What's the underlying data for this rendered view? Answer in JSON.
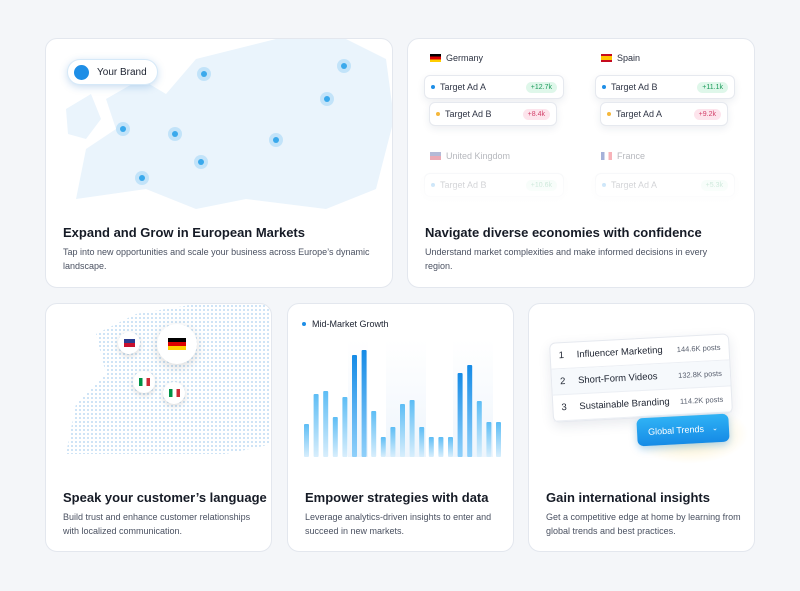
{
  "cards": [
    {
      "title": "Expand and Grow in European Markets",
      "description": "Tap into new opportunities and scale your business across Europe’s dynamic landscape.",
      "brand": "Your Brand"
    },
    {
      "title": "Navigate diverse economies with confidence",
      "description": "Understand market complexities and make informed decisions in every region.",
      "markets": [
        {
          "country": "Germany",
          "ads": [
            {
              "name": "Target Ad A",
              "change": "+12.7k"
            },
            {
              "name": "Target Ad B",
              "change": "+8.4k"
            }
          ]
        },
        {
          "country": "Spain",
          "ads": [
            {
              "name": "Target Ad B",
              "change": "+11.1k"
            },
            {
              "name": "Target Ad A",
              "change": "+9.2k"
            }
          ]
        },
        {
          "country": "United Kingdom",
          "ads": [
            {
              "name": "Target Ad B",
              "change": "+10.6k"
            }
          ]
        },
        {
          "country": "France",
          "ads": [
            {
              "name": "Target Ad A",
              "change": "+5.3k"
            }
          ]
        }
      ]
    },
    {
      "title": "Speak your customer’s language",
      "description": "Build trust and enhance customer relationships with localized communication."
    },
    {
      "title": "Empower strategies with data",
      "description": "Leverage analytics-driven insights to enter and succeed in new markets.",
      "chart_label": "Mid-Market Growth",
      "bars": [
        33,
        63,
        66,
        40,
        60,
        102,
        107,
        46,
        20,
        30,
        53,
        57,
        30,
        20,
        20,
        20,
        84,
        92,
        56,
        35,
        35
      ],
      "highlight": [
        false,
        false,
        false,
        false,
        false,
        true,
        true,
        false,
        false,
        false,
        false,
        false,
        false,
        false,
        false,
        false,
        true,
        true,
        false,
        false,
        false
      ]
    },
    {
      "title": "Gain international insights",
      "description": "Get a competitive edge at home by learning from global trends and best practices.",
      "trends": [
        {
          "rank": "1",
          "name": "Influencer Marketing",
          "posts": "144.6K posts"
        },
        {
          "rank": "2",
          "name": "Short-Form Videos",
          "posts": "132.8K posts"
        },
        {
          "rank": "3",
          "name": "Sustainable Branding",
          "posts": "114.2K posts"
        }
      ],
      "button": "Global Trends"
    }
  ]
}
